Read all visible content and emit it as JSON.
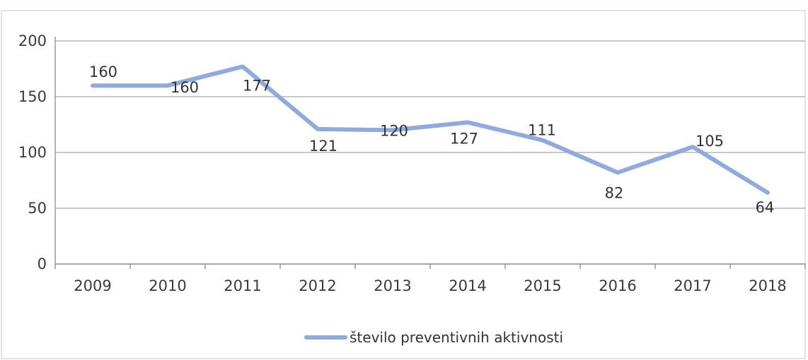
{
  "chart_data": {
    "type": "line",
    "title": "",
    "xlabel": "",
    "ylabel": "",
    "categories": [
      "2009",
      "2010",
      "2011",
      "2012",
      "2013",
      "2014",
      "2015",
      "2016",
      "2017",
      "2018"
    ],
    "series": [
      {
        "name": "število preventivnih aktivnosti",
        "values": [
          160,
          160,
          177,
          121,
          120,
          127,
          111,
          82,
          105,
          64
        ],
        "color": "#8faadc"
      }
    ],
    "ylim": [
      0,
      200
    ],
    "yticks": [
      0,
      50,
      100,
      150,
      200
    ],
    "grid": true,
    "data_labels": true,
    "legend_position": "bottom"
  }
}
